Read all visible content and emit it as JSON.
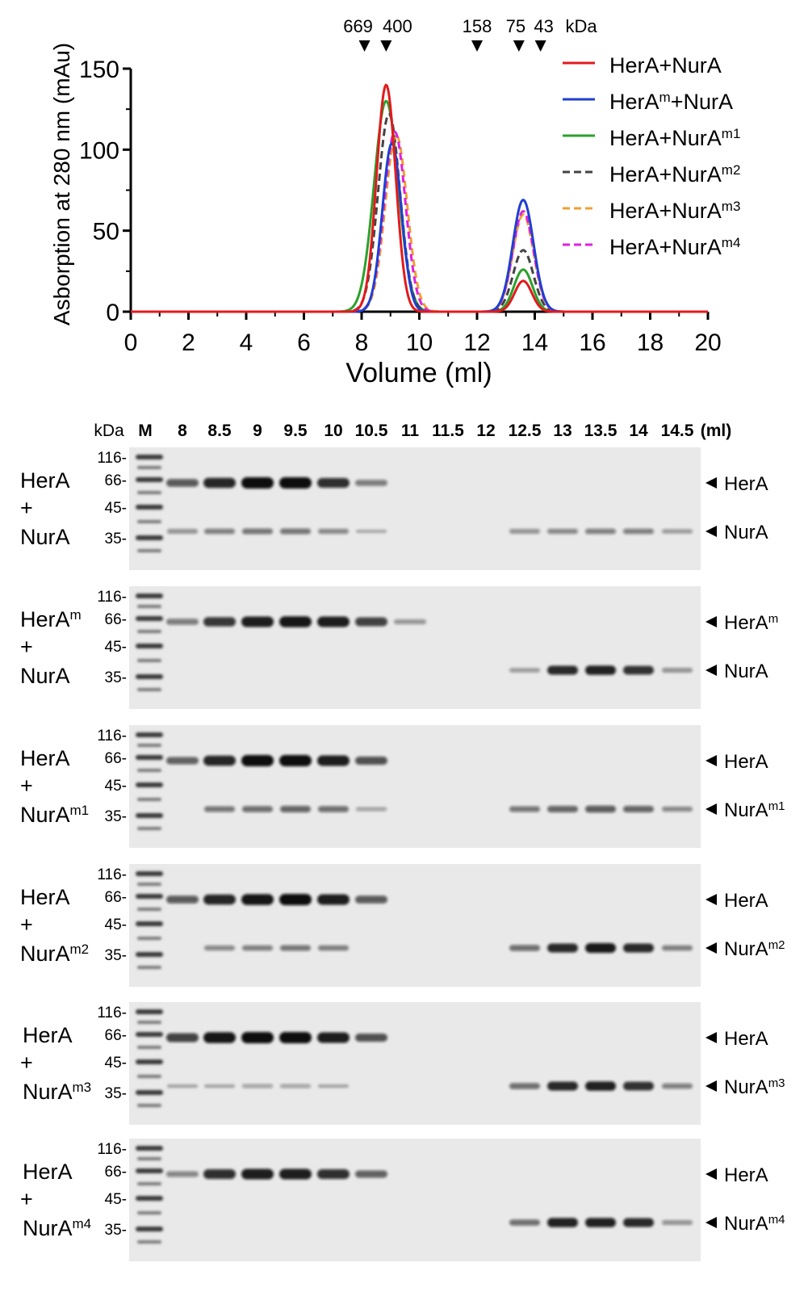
{
  "chart_data": {
    "type": "line",
    "xlabel": "Volume (ml)",
    "ylabel": "Asborption at 280 nm (mAu)",
    "xlim": [
      0,
      20
    ],
    "ylim": [
      0,
      150
    ],
    "xticks": [
      "0",
      "2",
      "4",
      "6",
      "8",
      "10",
      "12",
      "14",
      "16",
      "18",
      "20"
    ],
    "yticks": [
      "0",
      "50",
      "100",
      "150"
    ],
    "legend_position": "top-right",
    "markers": {
      "unit": "kDa",
      "items": [
        {
          "label": "669",
          "x": 8.1
        },
        {
          "label": "400",
          "x": 8.85
        },
        {
          "label": "158",
          "x": 12.0
        },
        {
          "label": "75",
          "x": 13.45
        },
        {
          "label": "43",
          "x": 14.2
        }
      ]
    },
    "series": [
      {
        "base": "HerA+NurA",
        "sup": "",
        "color": "#e31a1c",
        "dash": "solid",
        "x_start": 0,
        "peaks": [
          {
            "center": 8.85,
            "height": 140,
            "width": 0.33
          },
          {
            "center": 13.6,
            "height": 19,
            "width": 0.3
          }
        ]
      },
      {
        "base": "HerA",
        "sup": "m",
        "base2": "+NurA",
        "color": "#1f3fd1",
        "dash": "solid",
        "x_start": 3.4,
        "peaks": [
          {
            "center": 9.05,
            "height": 104,
            "width": 0.33
          },
          {
            "center": 13.6,
            "height": 69,
            "width": 0.36
          }
        ]
      },
      {
        "base": "HerA+NurA",
        "sup": "m1",
        "color": "#2ca02c",
        "dash": "solid",
        "x_start": 3.4,
        "peaks": [
          {
            "center": 8.85,
            "height": 130,
            "width": 0.42
          },
          {
            "center": 13.6,
            "height": 26,
            "width": 0.32
          }
        ]
      },
      {
        "base": "HerA+NurA",
        "sup": "m2",
        "color": "#444444",
        "dash": "dashed",
        "x_start": 3.4,
        "peaks": [
          {
            "center": 8.95,
            "height": 122,
            "width": 0.38
          },
          {
            "center": 13.6,
            "height": 38,
            "width": 0.35
          }
        ]
      },
      {
        "base": "HerA+NurA",
        "sup": "m3",
        "color": "#f0a030",
        "dash": "dashed",
        "x_start": 3.4,
        "peaks": [
          {
            "center": 9.2,
            "height": 109,
            "width": 0.38
          },
          {
            "center": 13.6,
            "height": 60,
            "width": 0.36
          }
        ]
      },
      {
        "base": "HerA+NurA",
        "sup": "m4",
        "color": "#e020e0",
        "dash": "dashed",
        "x_start": 3.4,
        "peaks": [
          {
            "center": 9.15,
            "height": 111,
            "width": 0.37
          },
          {
            "center": 13.6,
            "height": 62,
            "width": 0.36
          }
        ]
      }
    ]
  },
  "gels": {
    "header": {
      "kda": "kDa",
      "marker": "M",
      "unit": "(ml)",
      "fractions": [
        "8",
        "8.5",
        "9",
        "9.5",
        "10",
        "10.5",
        "11",
        "11.5",
        "12",
        "12.5",
        "13",
        "13.5",
        "14",
        "14.5"
      ]
    },
    "mw_labels": [
      "116-",
      "66-",
      "45-",
      "35-"
    ],
    "panels": [
      {
        "herA": "HerA",
        "herA_sup": "",
        "plus": "+",
        "nurA": "NurA",
        "nurA_sup": "",
        "right_top": "HerA",
        "right_top_sup": "",
        "right_bottom": "NurA",
        "right_bottom_sup": "",
        "herA_band": [
          0.55,
          0.85,
          1.0,
          1.0,
          0.8,
          0.35,
          0,
          0,
          0,
          0,
          0,
          0,
          0,
          0
        ],
        "nurA_band": [
          0.3,
          0.4,
          0.45,
          0.45,
          0.35,
          0.12,
          0,
          0,
          0,
          0.3,
          0.35,
          0.4,
          0.4,
          0.25
        ]
      },
      {
        "herA": "HerA",
        "herA_sup": "m",
        "plus": "+",
        "nurA": "NurA",
        "nurA_sup": "",
        "right_top": "HerA",
        "right_top_sup": "m",
        "right_bottom": "NurA",
        "right_bottom_sup": "",
        "herA_band": [
          0.35,
          0.75,
          0.9,
          0.95,
          0.9,
          0.7,
          0.2,
          0,
          0,
          0,
          0,
          0,
          0,
          0
        ],
        "nurA_band": [
          0,
          0,
          0,
          0,
          0,
          0,
          0,
          0,
          0,
          0.25,
          0.9,
          0.95,
          0.85,
          0.3
        ]
      },
      {
        "herA": "HerA",
        "herA_sup": "",
        "plus": "+",
        "nurA": "NurA",
        "nurA_sup": "m1",
        "right_top": "HerA",
        "right_top_sup": "",
        "right_bottom": "NurA",
        "right_bottom_sup": "m1",
        "herA_band": [
          0.5,
          0.85,
          1.0,
          1.0,
          0.9,
          0.6,
          0,
          0,
          0,
          0,
          0,
          0,
          0,
          0
        ],
        "nurA_band": [
          0,
          0.45,
          0.5,
          0.55,
          0.5,
          0.2,
          0,
          0,
          0,
          0.45,
          0.55,
          0.6,
          0.55,
          0.35
        ]
      },
      {
        "herA": "HerA",
        "herA_sup": "",
        "plus": "+",
        "nurA": "NurA",
        "nurA_sup": "m2",
        "right_top": "HerA",
        "right_top_sup": "",
        "right_bottom": "NurA",
        "right_bottom_sup": "m2",
        "herA_band": [
          0.55,
          0.85,
          0.95,
          1.0,
          0.9,
          0.55,
          0,
          0,
          0,
          0,
          0,
          0,
          0,
          0
        ],
        "nurA_band": [
          0,
          0.35,
          0.4,
          0.45,
          0.4,
          0,
          0,
          0,
          0,
          0.5,
          0.9,
          1.0,
          0.9,
          0.4
        ]
      },
      {
        "herA": "HerA",
        "herA_sup": "",
        "plus": "+",
        "nurA": "NurA",
        "nurA_sup": "m3",
        "right_top": "HerA",
        "right_top_sup": "",
        "right_bottom": "NurA",
        "right_bottom_sup": "m3",
        "herA_band": [
          0.7,
          0.95,
          1.0,
          1.0,
          0.9,
          0.6,
          0,
          0,
          0,
          0,
          0,
          0,
          0,
          0
        ],
        "nurA_band": [
          0.15,
          0.15,
          0.2,
          0.2,
          0.15,
          0,
          0,
          0,
          0,
          0.5,
          0.9,
          0.95,
          0.85,
          0.4
        ]
      },
      {
        "herA": "HerA",
        "herA_sup": "",
        "plus": "+",
        "nurA": "NurA",
        "nurA_sup": "m4",
        "right_top": "HerA",
        "right_top_sup": "",
        "right_bottom": "NurA",
        "right_bottom_sup": "m4",
        "herA_band": [
          0.3,
          0.8,
          0.9,
          0.9,
          0.8,
          0.5,
          0,
          0,
          0,
          0,
          0,
          0,
          0,
          0
        ],
        "nurA_band": [
          0,
          0,
          0,
          0,
          0,
          0,
          0,
          0,
          0,
          0.5,
          0.95,
          0.95,
          0.9,
          0.3
        ]
      }
    ]
  }
}
